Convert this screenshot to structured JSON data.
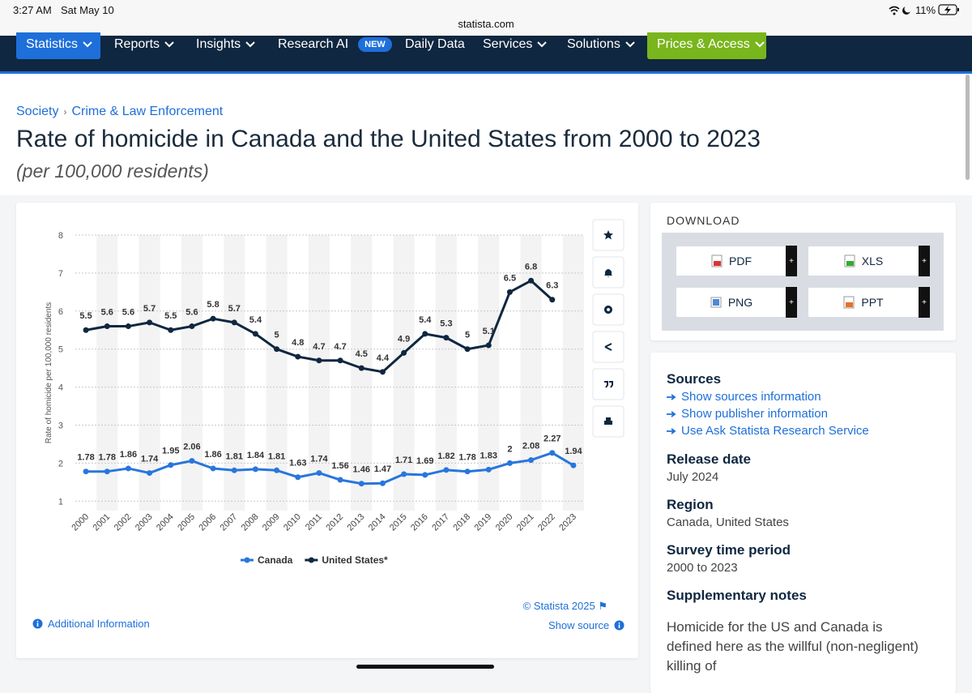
{
  "status_bar": {
    "time": "3:27 AM",
    "date": "Sat May 10",
    "url": "statista.com",
    "battery": "11%"
  },
  "nav": {
    "items": [
      "Statistics",
      "Reports",
      "Insights",
      "Research AI",
      "Daily Data",
      "Services",
      "Solutions",
      "Prices & Access"
    ],
    "badge": "NEW"
  },
  "breadcrumb": [
    "Society",
    "Crime & Law Enforcement"
  ],
  "header": {
    "title": "Rate of homicide in Canada and the United States from 2000 to 2023",
    "subtitle": "(per 100,000 residents)"
  },
  "chart_data": {
    "type": "line",
    "ylabel": "Rate of homicide per 100,000 residents",
    "categories": [
      "2000",
      "2001",
      "2002",
      "2003",
      "2004",
      "2005",
      "2006",
      "2007",
      "2008",
      "2009",
      "2010",
      "2011",
      "2012",
      "2013",
      "2014",
      "2015",
      "2016",
      "2017",
      "2018",
      "2019",
      "2020",
      "2021",
      "2022",
      "2023"
    ],
    "series": [
      {
        "name": "Canada",
        "color": "#2876dd",
        "values": [
          1.78,
          1.78,
          1.86,
          1.74,
          1.95,
          2.06,
          1.86,
          1.81,
          1.84,
          1.81,
          1.63,
          1.74,
          1.56,
          1.46,
          1.47,
          1.71,
          1.69,
          1.82,
          1.78,
          1.83,
          2,
          2.08,
          2.27,
          1.94
        ]
      },
      {
        "name": "United States*",
        "color": "#0f2740",
        "values": [
          5.5,
          5.6,
          5.6,
          5.7,
          5.5,
          5.6,
          5.8,
          5.7,
          5.4,
          5,
          4.8,
          4.7,
          4.7,
          4.5,
          4.4,
          4.9,
          5.4,
          5.3,
          5,
          5.1,
          6.5,
          6.8,
          6.3,
          null
        ]
      }
    ],
    "ylim": [
      0.75,
      8
    ],
    "yticks": [
      1,
      2,
      3,
      4,
      5,
      6,
      7,
      8
    ],
    "grid": true,
    "legend": "bottom"
  },
  "chart_footer": {
    "copyright": "© Statista 2025",
    "additional_info": "Additional Information",
    "show_source": "Show source"
  },
  "download": {
    "heading": "DOWNLOAD",
    "formats": [
      "PDF",
      "XLS",
      "PNG",
      "PPT"
    ],
    "plus": "+"
  },
  "details": {
    "sources_heading": "Sources",
    "source_links": [
      "Show sources information",
      "Show publisher information",
      "Use Ask Statista Research Service"
    ],
    "release_date_heading": "Release date",
    "release_date": "July 2024",
    "region_heading": "Region",
    "region": "Canada, United States",
    "survey_period_heading": "Survey time period",
    "survey_period": "2000 to 2023",
    "notes_heading": "Supplementary notes",
    "notes": "Homicide for the US and Canada is defined here as the willful (non-negligent) killing of"
  }
}
